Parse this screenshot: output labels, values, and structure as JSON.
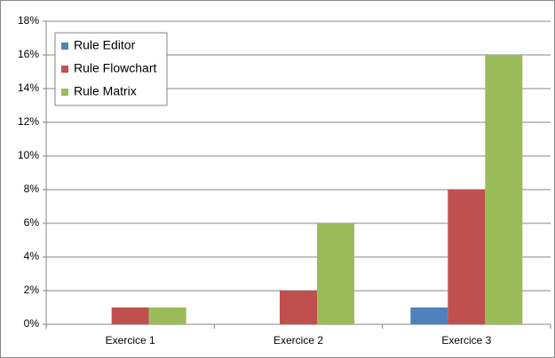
{
  "chart_data": {
    "type": "bar",
    "categories": [
      "Exercice 1",
      "Exercice 2",
      "Exercice 3"
    ],
    "series": [
      {
        "name": "Rule Editor",
        "color": "#4f81bd",
        "values": [
          0,
          0,
          1
        ]
      },
      {
        "name": "Rule Flowchart",
        "color": "#c0504d",
        "values": [
          1,
          2,
          8
        ]
      },
      {
        "name": "Rule Matrix",
        "color": "#9bbb59",
        "values": [
          1,
          6,
          16
        ]
      }
    ],
    "ylim": [
      0,
      18
    ],
    "yticks": [
      {
        "value": 0,
        "label": "0%"
      },
      {
        "value": 2,
        "label": "2%"
      },
      {
        "value": 4,
        "label": "4%"
      },
      {
        "value": 6,
        "label": "6%"
      },
      {
        "value": 8,
        "label": "8%"
      },
      {
        "value": 10,
        "label": "10%"
      },
      {
        "value": 12,
        "label": "12%"
      },
      {
        "value": 14,
        "label": "14%"
      },
      {
        "value": 16,
        "label": "16%"
      },
      {
        "value": 18,
        "label": "18%"
      }
    ],
    "grid": true,
    "legend": "upper left"
  }
}
